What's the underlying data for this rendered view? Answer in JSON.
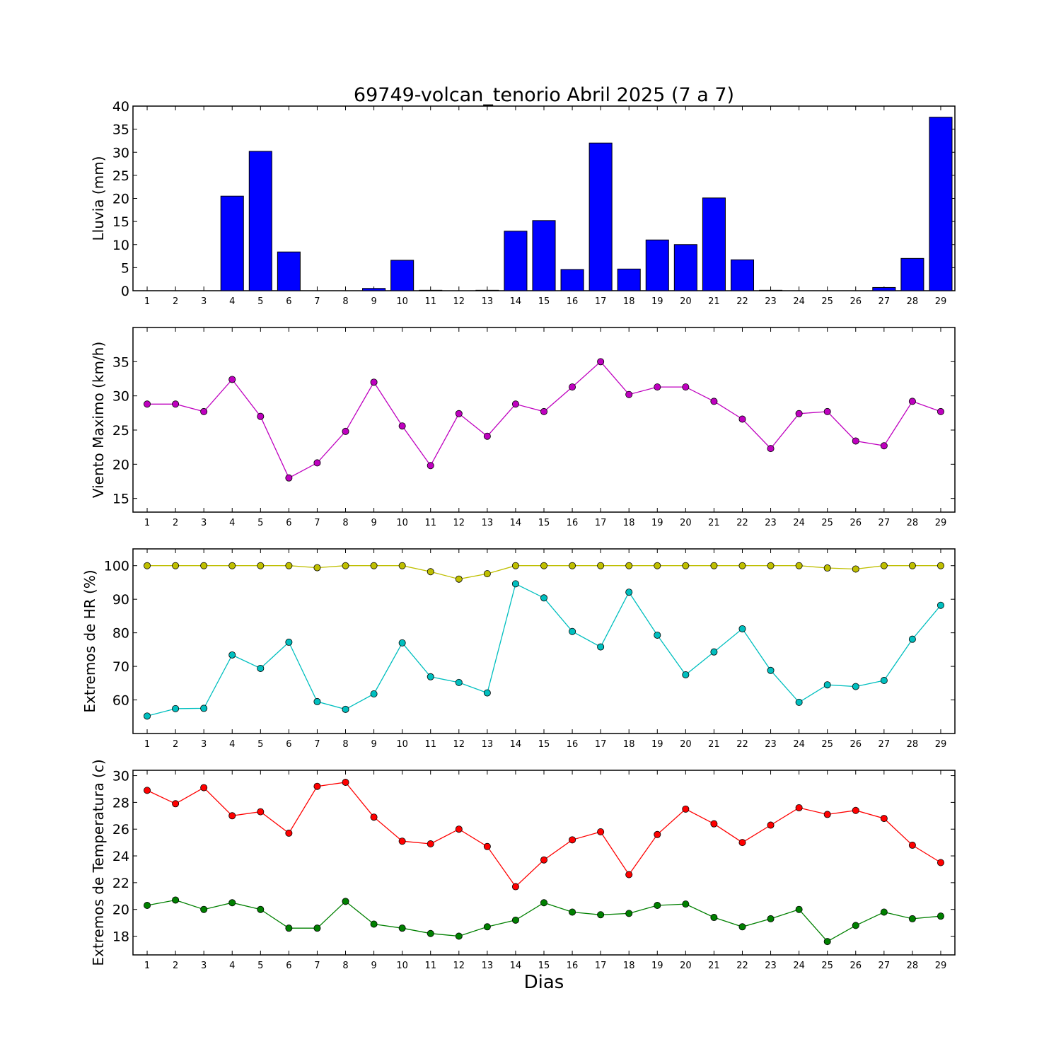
{
  "figure": {
    "title": "69749-volcan_tenorio Abril 2025  (7 a 7)",
    "xlabel": "Dias"
  },
  "chart_data": [
    {
      "type": "bar",
      "ylabel": "Lluvia (mm)",
      "ylim": [
        0,
        40
      ],
      "yticks": [
        0,
        5,
        10,
        15,
        20,
        25,
        30,
        35,
        40
      ],
      "categories": [
        1,
        2,
        3,
        4,
        5,
        6,
        7,
        8,
        9,
        10,
        11,
        12,
        13,
        14,
        15,
        16,
        17,
        18,
        19,
        20,
        21,
        22,
        23,
        24,
        25,
        26,
        27,
        28,
        29
      ],
      "series": [
        {
          "color": "#0000ff",
          "values": [
            0,
            0,
            0,
            20.5,
            30.2,
            8.4,
            0,
            0,
            0.5,
            6.6,
            0.1,
            0,
            0.1,
            12.9,
            15.2,
            4.6,
            32.0,
            4.7,
            11.0,
            10.0,
            20.1,
            6.7,
            0.1,
            0,
            0,
            0,
            0.7,
            7.0,
            37.6
          ]
        }
      ]
    },
    {
      "type": "line",
      "ylabel": "Viento Maximo (km/h)",
      "ylim": [
        13,
        40
      ],
      "yticks": [
        15,
        20,
        25,
        30,
        35
      ],
      "x": [
        1,
        2,
        3,
        4,
        5,
        6,
        7,
        8,
        9,
        10,
        11,
        12,
        13,
        14,
        15,
        16,
        17,
        18,
        19,
        20,
        21,
        22,
        23,
        24,
        25,
        26,
        27,
        28,
        29
      ],
      "series": [
        {
          "color": "#bf00bf",
          "values": [
            28.8,
            28.8,
            27.7,
            32.4,
            27.0,
            18.0,
            20.2,
            24.8,
            32.0,
            25.6,
            19.8,
            27.4,
            24.1,
            28.8,
            27.7,
            31.3,
            35.0,
            30.2,
            31.3,
            31.3,
            29.2,
            26.6,
            22.3,
            27.4,
            27.7,
            23.4,
            22.7,
            29.2,
            27.7
          ]
        }
      ]
    },
    {
      "type": "line",
      "ylabel": "Extremos de HR (%)",
      "ylim": [
        50,
        105
      ],
      "yticks": [
        60,
        70,
        80,
        90,
        100
      ],
      "x": [
        1,
        2,
        3,
        4,
        5,
        6,
        7,
        8,
        9,
        10,
        11,
        12,
        13,
        14,
        15,
        16,
        17,
        18,
        19,
        20,
        21,
        22,
        23,
        24,
        25,
        26,
        27,
        28,
        29
      ],
      "series": [
        {
          "color": "#bfbf00",
          "values": [
            100,
            100,
            100,
            100,
            100,
            100,
            99.4,
            100,
            100,
            100,
            98.2,
            96.0,
            97.6,
            100,
            100,
            100,
            100,
            100,
            100,
            100,
            100,
            100,
            100,
            100,
            99.3,
            99.0,
            100,
            100,
            100
          ]
        },
        {
          "color": "#00bfbf",
          "values": [
            55.2,
            57.4,
            57.5,
            73.4,
            69.4,
            77.2,
            59.5,
            57.2,
            61.8,
            77.0,
            66.9,
            65.2,
            62.1,
            94.6,
            90.4,
            80.4,
            75.8,
            92.1,
            79.3,
            67.5,
            74.3,
            81.2,
            68.8,
            59.3,
            64.5,
            64.0,
            65.8,
            78.1,
            88.2
          ]
        }
      ]
    },
    {
      "type": "line",
      "ylabel": "Extremos de Temperatura (c)",
      "ylim": [
        16.6,
        30.4
      ],
      "yticks": [
        18,
        20,
        22,
        24,
        26,
        28,
        30
      ],
      "x": [
        1,
        2,
        3,
        4,
        5,
        6,
        7,
        8,
        9,
        10,
        11,
        12,
        13,
        14,
        15,
        16,
        17,
        18,
        19,
        20,
        21,
        22,
        23,
        24,
        25,
        26,
        27,
        28,
        29
      ],
      "series": [
        {
          "color": "#ff0000",
          "values": [
            28.9,
            27.9,
            29.1,
            27.0,
            27.3,
            25.7,
            29.2,
            29.5,
            26.9,
            25.1,
            24.9,
            26.0,
            24.7,
            21.7,
            23.7,
            25.2,
            25.8,
            22.6,
            25.6,
            27.5,
            26.4,
            25.0,
            26.3,
            27.6,
            27.1,
            27.4,
            26.8,
            24.8,
            23.5
          ]
        },
        {
          "color": "#008000",
          "values": [
            20.3,
            20.7,
            20.0,
            20.5,
            20.0,
            18.6,
            18.6,
            20.6,
            18.9,
            18.6,
            18.2,
            18.0,
            18.7,
            19.2,
            20.5,
            19.8,
            19.6,
            19.7,
            20.3,
            20.4,
            19.4,
            18.7,
            19.3,
            20.0,
            17.6,
            18.8,
            19.8,
            19.3,
            19.5
          ]
        }
      ]
    }
  ]
}
